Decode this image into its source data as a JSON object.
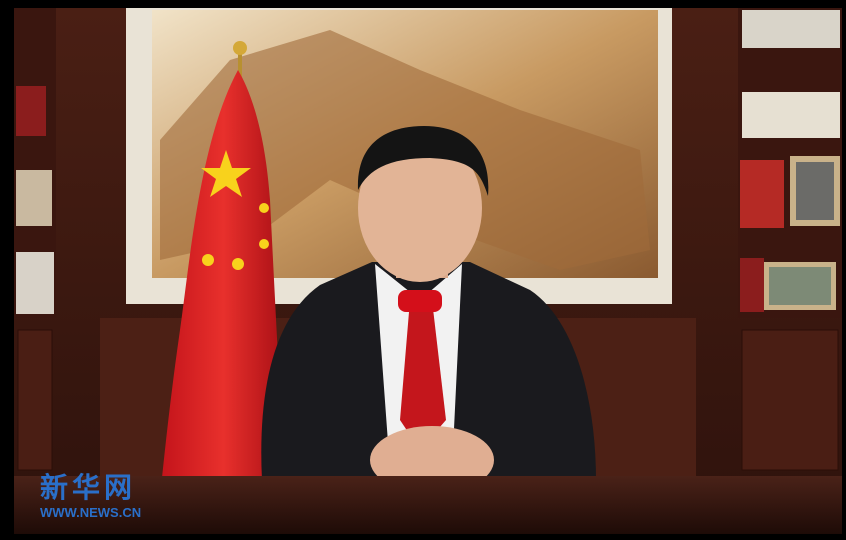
{
  "watermark": {
    "logo": "新华网",
    "url": "WWW.NEWS.CN"
  }
}
